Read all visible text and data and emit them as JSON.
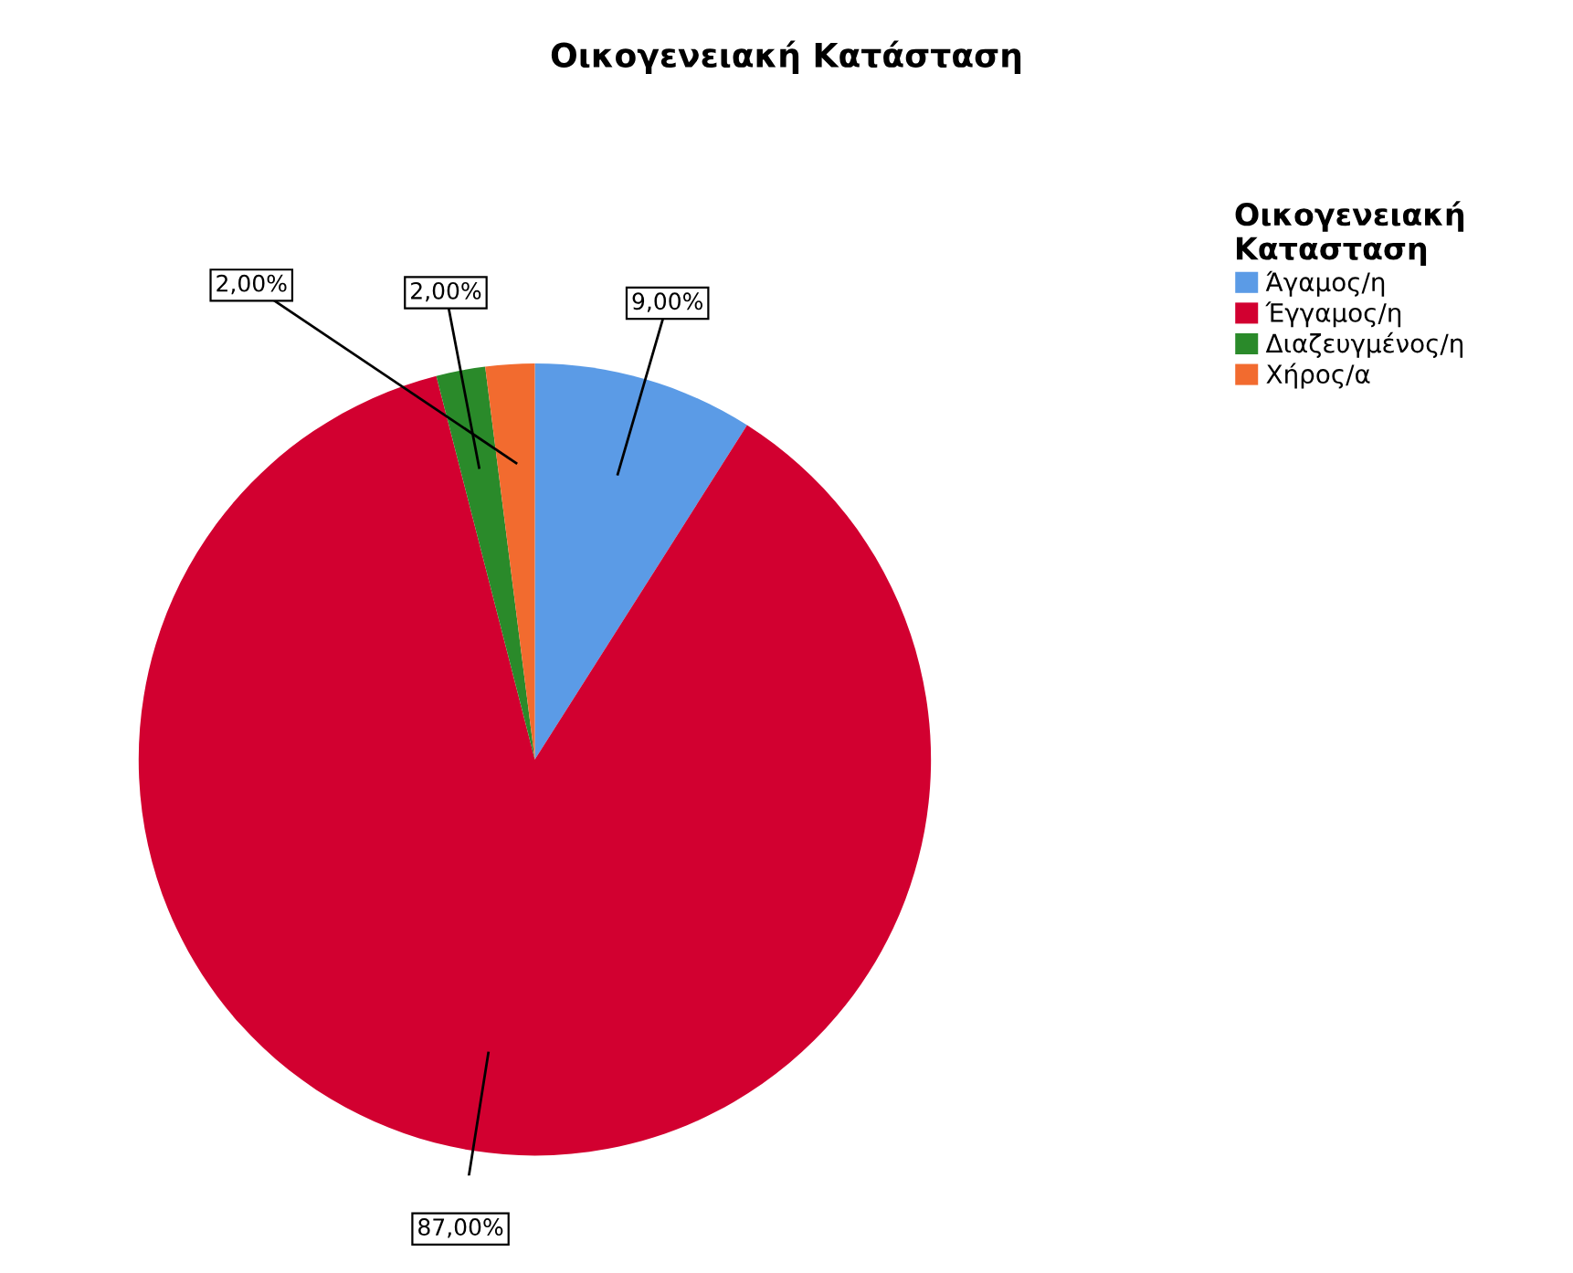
{
  "chart_data": {
    "type": "pie",
    "title": "Οικογενειακή Κατάσταση",
    "legend_title": "Οικογενειακή Κατασταση",
    "categories": [
      "Άγαμος/η",
      "Έγγαμος/η",
      "Διαζευγμένος/η",
      "Χήρος/α"
    ],
    "values": [
      9,
      87,
      2,
      2
    ],
    "colors": [
      "#5b9be6",
      "#d20030",
      "#2a8a2a",
      "#f26b2f"
    ],
    "value_labels": [
      "9,00%",
      "87,00%",
      "2,00%",
      "2,00%"
    ],
    "legend": "right"
  }
}
